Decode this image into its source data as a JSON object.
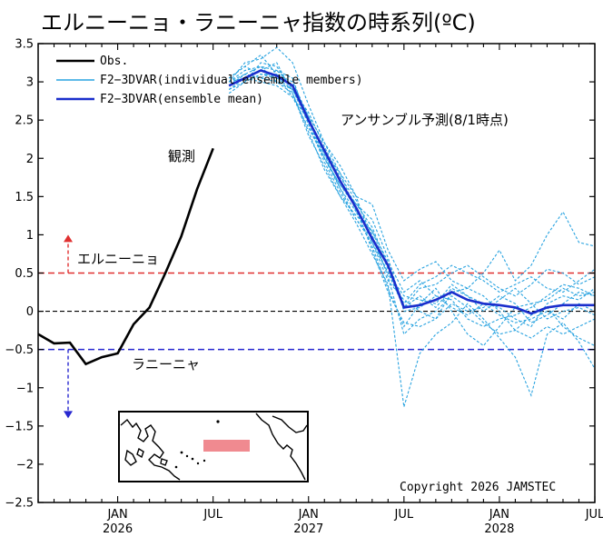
{
  "chart_data": {
    "type": "line",
    "title": "エルニーニョ・ラニーニャ指数の時系列(ºC)",
    "xlabel": "",
    "ylabel": "",
    "ylim": [
      -2.5,
      3.5
    ],
    "yticks": [
      3.5,
      3,
      2.5,
      2,
      1.5,
      1,
      0.5,
      0,
      -0.5,
      -1,
      -1.5,
      -2,
      -2.5
    ],
    "xlim": [
      "2025-08",
      "2028-07"
    ],
    "xticks": [
      {
        "month": "JAN",
        "year": "2026",
        "date": "2026-01"
      },
      {
        "month": "JUL",
        "year": "",
        "date": "2026-07"
      },
      {
        "month": "JAN",
        "year": "2027",
        "date": "2027-01"
      },
      {
        "month": "JUL",
        "year": "",
        "date": "2027-07"
      },
      {
        "month": "JAN",
        "year": "2028",
        "date": "2028-01"
      },
      {
        "month": "JUL",
        "year": "",
        "date": "2028-07"
      }
    ],
    "legend": {
      "placement": "top-left",
      "entries": [
        "Obs.",
        "F2−3DVAR(individual ensemble members)",
        "F2−3DVAR(ensemble mean)"
      ]
    },
    "colors": {
      "obs": "#000000",
      "members": "#29a3e0",
      "mean": "#1a2ecc",
      "el_nino": "#e03030",
      "la_nina": "#2828d0",
      "pink_box": "#f08a90"
    },
    "thresholds": {
      "el_nino": 0.5,
      "la_nina": -0.5
    },
    "series": [
      {
        "name": "Obs.",
        "x": [
          "2025-08",
          "2025-09",
          "2025-10",
          "2025-11",
          "2025-12",
          "2026-01",
          "2026-02",
          "2026-03",
          "2026-04",
          "2026-05",
          "2026-06",
          "2026-07"
        ],
        "values": [
          -0.3,
          -0.42,
          -0.41,
          -0.69,
          -0.6,
          -0.55,
          -0.17,
          0.05,
          0.5,
          0.98,
          1.6,
          2.13
        ]
      },
      {
        "name": "F2−3DVAR(ensemble mean)",
        "x": [
          "2026-08",
          "2026-09",
          "2026-10",
          "2026-11",
          "2026-12",
          "2027-01",
          "2027-02",
          "2027-03",
          "2027-04",
          "2027-05",
          "2027-06",
          "2027-07",
          "2027-08",
          "2027-09",
          "2027-10",
          "2027-11",
          "2027-12",
          "2028-01",
          "2028-02",
          "2028-03",
          "2028-04",
          "2028-05",
          "2028-06",
          "2028-07"
        ],
        "values": [
          2.95,
          3.05,
          3.15,
          3.08,
          2.95,
          2.5,
          2.1,
          1.7,
          1.35,
          0.95,
          0.6,
          0.05,
          0.08,
          0.15,
          0.25,
          0.15,
          0.1,
          0.08,
          0.05,
          -0.03,
          0.05,
          0.08,
          0.08,
          0.08
        ]
      }
    ],
    "members": {
      "x": [
        "2026-08",
        "2026-09",
        "2026-10",
        "2026-11",
        "2026-12",
        "2027-01",
        "2027-02",
        "2027-03",
        "2027-04",
        "2027-05",
        "2027-06",
        "2027-07",
        "2027-08",
        "2027-09",
        "2027-10",
        "2027-11",
        "2027-12",
        "2028-01",
        "2028-02",
        "2028-03",
        "2028-04",
        "2028-05",
        "2028-06",
        "2028-07"
      ],
      "values": [
        [
          3.0,
          3.25,
          3.3,
          3.45,
          3.25,
          2.7,
          2.2,
          1.9,
          1.5,
          1.4,
          0.8,
          0.4,
          0.55,
          0.65,
          0.4,
          0.3,
          0.5,
          0.8,
          0.4,
          0.6,
          1.0,
          1.3,
          0.9,
          0.85
        ],
        [
          2.9,
          3.05,
          3.15,
          3.25,
          2.85,
          2.3,
          1.9,
          1.5,
          1.15,
          0.75,
          0.35,
          -1.25,
          -0.55,
          -0.3,
          -0.15,
          0.1,
          -0.1,
          -0.35,
          -0.6,
          -1.1,
          -0.3,
          -0.15,
          -0.4,
          -0.75
        ],
        [
          2.95,
          3.1,
          3.05,
          3.0,
          2.9,
          2.5,
          2.05,
          1.7,
          1.4,
          1.1,
          0.6,
          0.1,
          0.35,
          0.45,
          0.6,
          0.5,
          0.4,
          0.25,
          0.35,
          0.45,
          0.3,
          0.25,
          0.4,
          0.55
        ],
        [
          3.05,
          3.2,
          3.35,
          3.1,
          2.8,
          2.4,
          2.0,
          1.65,
          1.4,
          1.2,
          0.7,
          0.0,
          0.05,
          0.2,
          0.15,
          -0.1,
          -0.2,
          -0.1,
          -0.05,
          0.05,
          0.2,
          0.35,
          0.3,
          0.2
        ],
        [
          2.85,
          3.0,
          3.1,
          3.05,
          2.95,
          2.55,
          2.2,
          1.8,
          1.3,
          0.85,
          0.3,
          -0.2,
          0.1,
          0.3,
          0.0,
          -0.3,
          -0.45,
          -0.2,
          0.05,
          0.1,
          -0.1,
          0.0,
          0.05,
          -0.05
        ],
        [
          3.0,
          3.1,
          3.2,
          3.15,
          3.05,
          2.45,
          1.95,
          1.55,
          1.2,
          0.9,
          0.5,
          0.2,
          0.15,
          0.1,
          0.35,
          0.2,
          0.1,
          0.05,
          -0.1,
          -0.2,
          0.1,
          0.2,
          0.15,
          0.3
        ],
        [
          2.9,
          3.0,
          3.25,
          3.2,
          2.9,
          2.6,
          2.15,
          1.75,
          1.45,
          1.0,
          0.45,
          -0.3,
          -0.1,
          0.0,
          0.2,
          0.05,
          -0.15,
          -0.3,
          -0.25,
          -0.05,
          0.05,
          -0.2,
          -0.35,
          -0.45
        ],
        [
          3.0,
          3.15,
          3.2,
          3.0,
          2.85,
          2.35,
          1.85,
          1.5,
          1.25,
          1.05,
          0.55,
          0.05,
          0.3,
          0.35,
          0.5,
          0.6,
          0.45,
          0.3,
          0.2,
          0.35,
          0.55,
          0.5,
          0.35,
          0.45
        ],
        [
          2.95,
          3.05,
          3.0,
          2.95,
          2.8,
          2.5,
          2.1,
          1.8,
          1.5,
          0.9,
          0.4,
          0.15,
          0.0,
          -0.1,
          0.1,
          0.0,
          0.05,
          0.2,
          0.1,
          -0.15,
          -0.05,
          0.1,
          0.25,
          0.2
        ],
        [
          3.05,
          3.2,
          3.1,
          3.1,
          3.0,
          2.55,
          2.05,
          1.6,
          1.3,
          1.05,
          0.65,
          0.25,
          0.4,
          0.2,
          0.05,
          -0.05,
          0.1,
          -0.05,
          -0.15,
          -0.1,
          0.0,
          -0.1,
          0.1,
          0.0
        ],
        [
          2.95,
          3.1,
          3.05,
          3.15,
          2.95,
          2.5,
          2.0,
          1.65,
          1.35,
          0.8,
          0.25,
          -0.15,
          -0.2,
          -0.1,
          0.25,
          0.3,
          0.2,
          0.0,
          -0.25,
          -0.35,
          -0.2,
          -0.3,
          -0.2,
          -0.1
        ],
        [
          3.0,
          3.05,
          3.15,
          3.05,
          2.9,
          2.45,
          2.0,
          1.6,
          1.2,
          0.95,
          0.5,
          0.05,
          0.2,
          0.05,
          0.3,
          0.2,
          0.0,
          0.15,
          0.3,
          0.1,
          0.15,
          0.3,
          0.2,
          0.25
        ]
      ]
    },
    "annotations": {
      "observed": "観測",
      "forecast": "アンサンブル予測(8/1時点)",
      "el_nino": "エルニーニョ",
      "la_nina": "ラニーニャ",
      "copyright": "Copyright 2026 JAMSTEC"
    }
  }
}
